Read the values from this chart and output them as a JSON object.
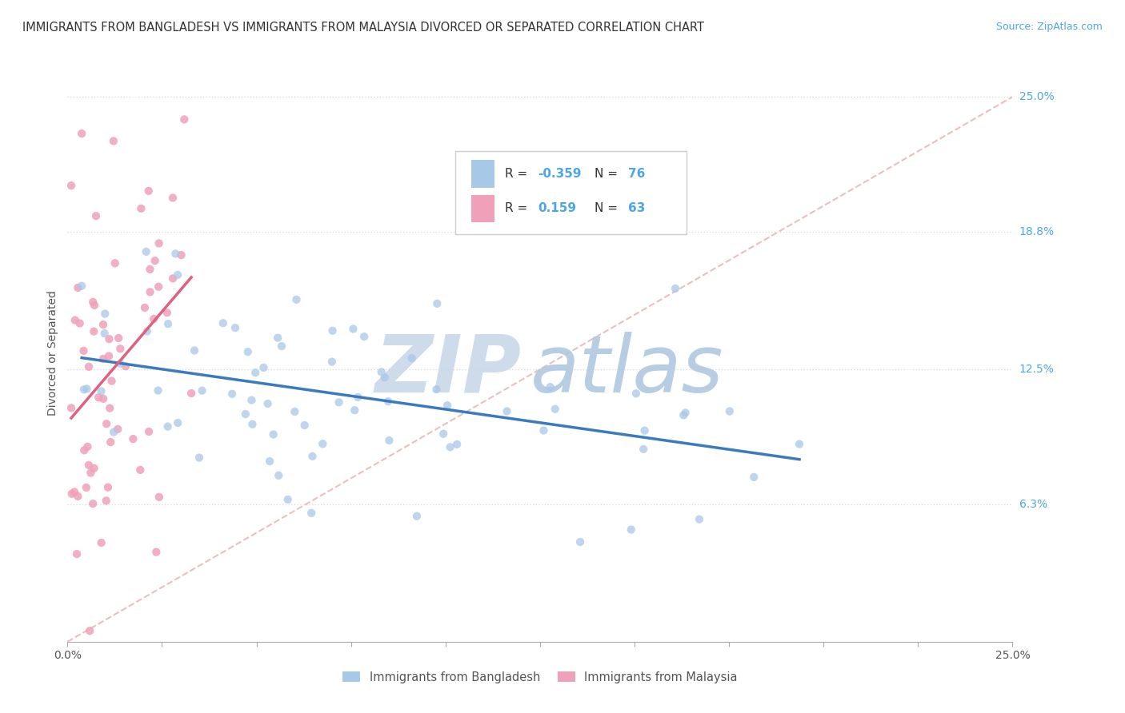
{
  "title": "IMMIGRANTS FROM BANGLADESH VS IMMIGRANTS FROM MALAYSIA DIVORCED OR SEPARATED CORRELATION CHART",
  "source": "Source: ZipAtlas.com",
  "ylabel": "Divorced or Separated",
  "legend_label1": "Immigrants from Bangladesh",
  "legend_label2": "Immigrants from Malaysia",
  "R1": -0.359,
  "N1": 76,
  "R2": 0.159,
  "N2": 63,
  "xlim": [
    0.0,
    0.25
  ],
  "ylim": [
    0.0,
    0.25
  ],
  "ytick_vals": [
    0.063,
    0.125,
    0.188,
    0.25
  ],
  "ytick_labels": [
    "6.3%",
    "12.5%",
    "18.8%",
    "25.0%"
  ],
  "color1": "#a8c8e8",
  "color2": "#f0a0b8",
  "line1_color": "#3a7abf",
  "line2_color": "#e06080",
  "ref_line_color": "#e8b8b8",
  "watermark_zip": "ZIP",
  "watermark_atlas": "atlas",
  "watermark_color_zip": "#c8d8e8",
  "watermark_color_atlas": "#b0c8e0",
  "bg_color": "#ffffff",
  "title_fontsize": 10.5,
  "source_fontsize": 9,
  "grid_color": "#dddddd"
}
